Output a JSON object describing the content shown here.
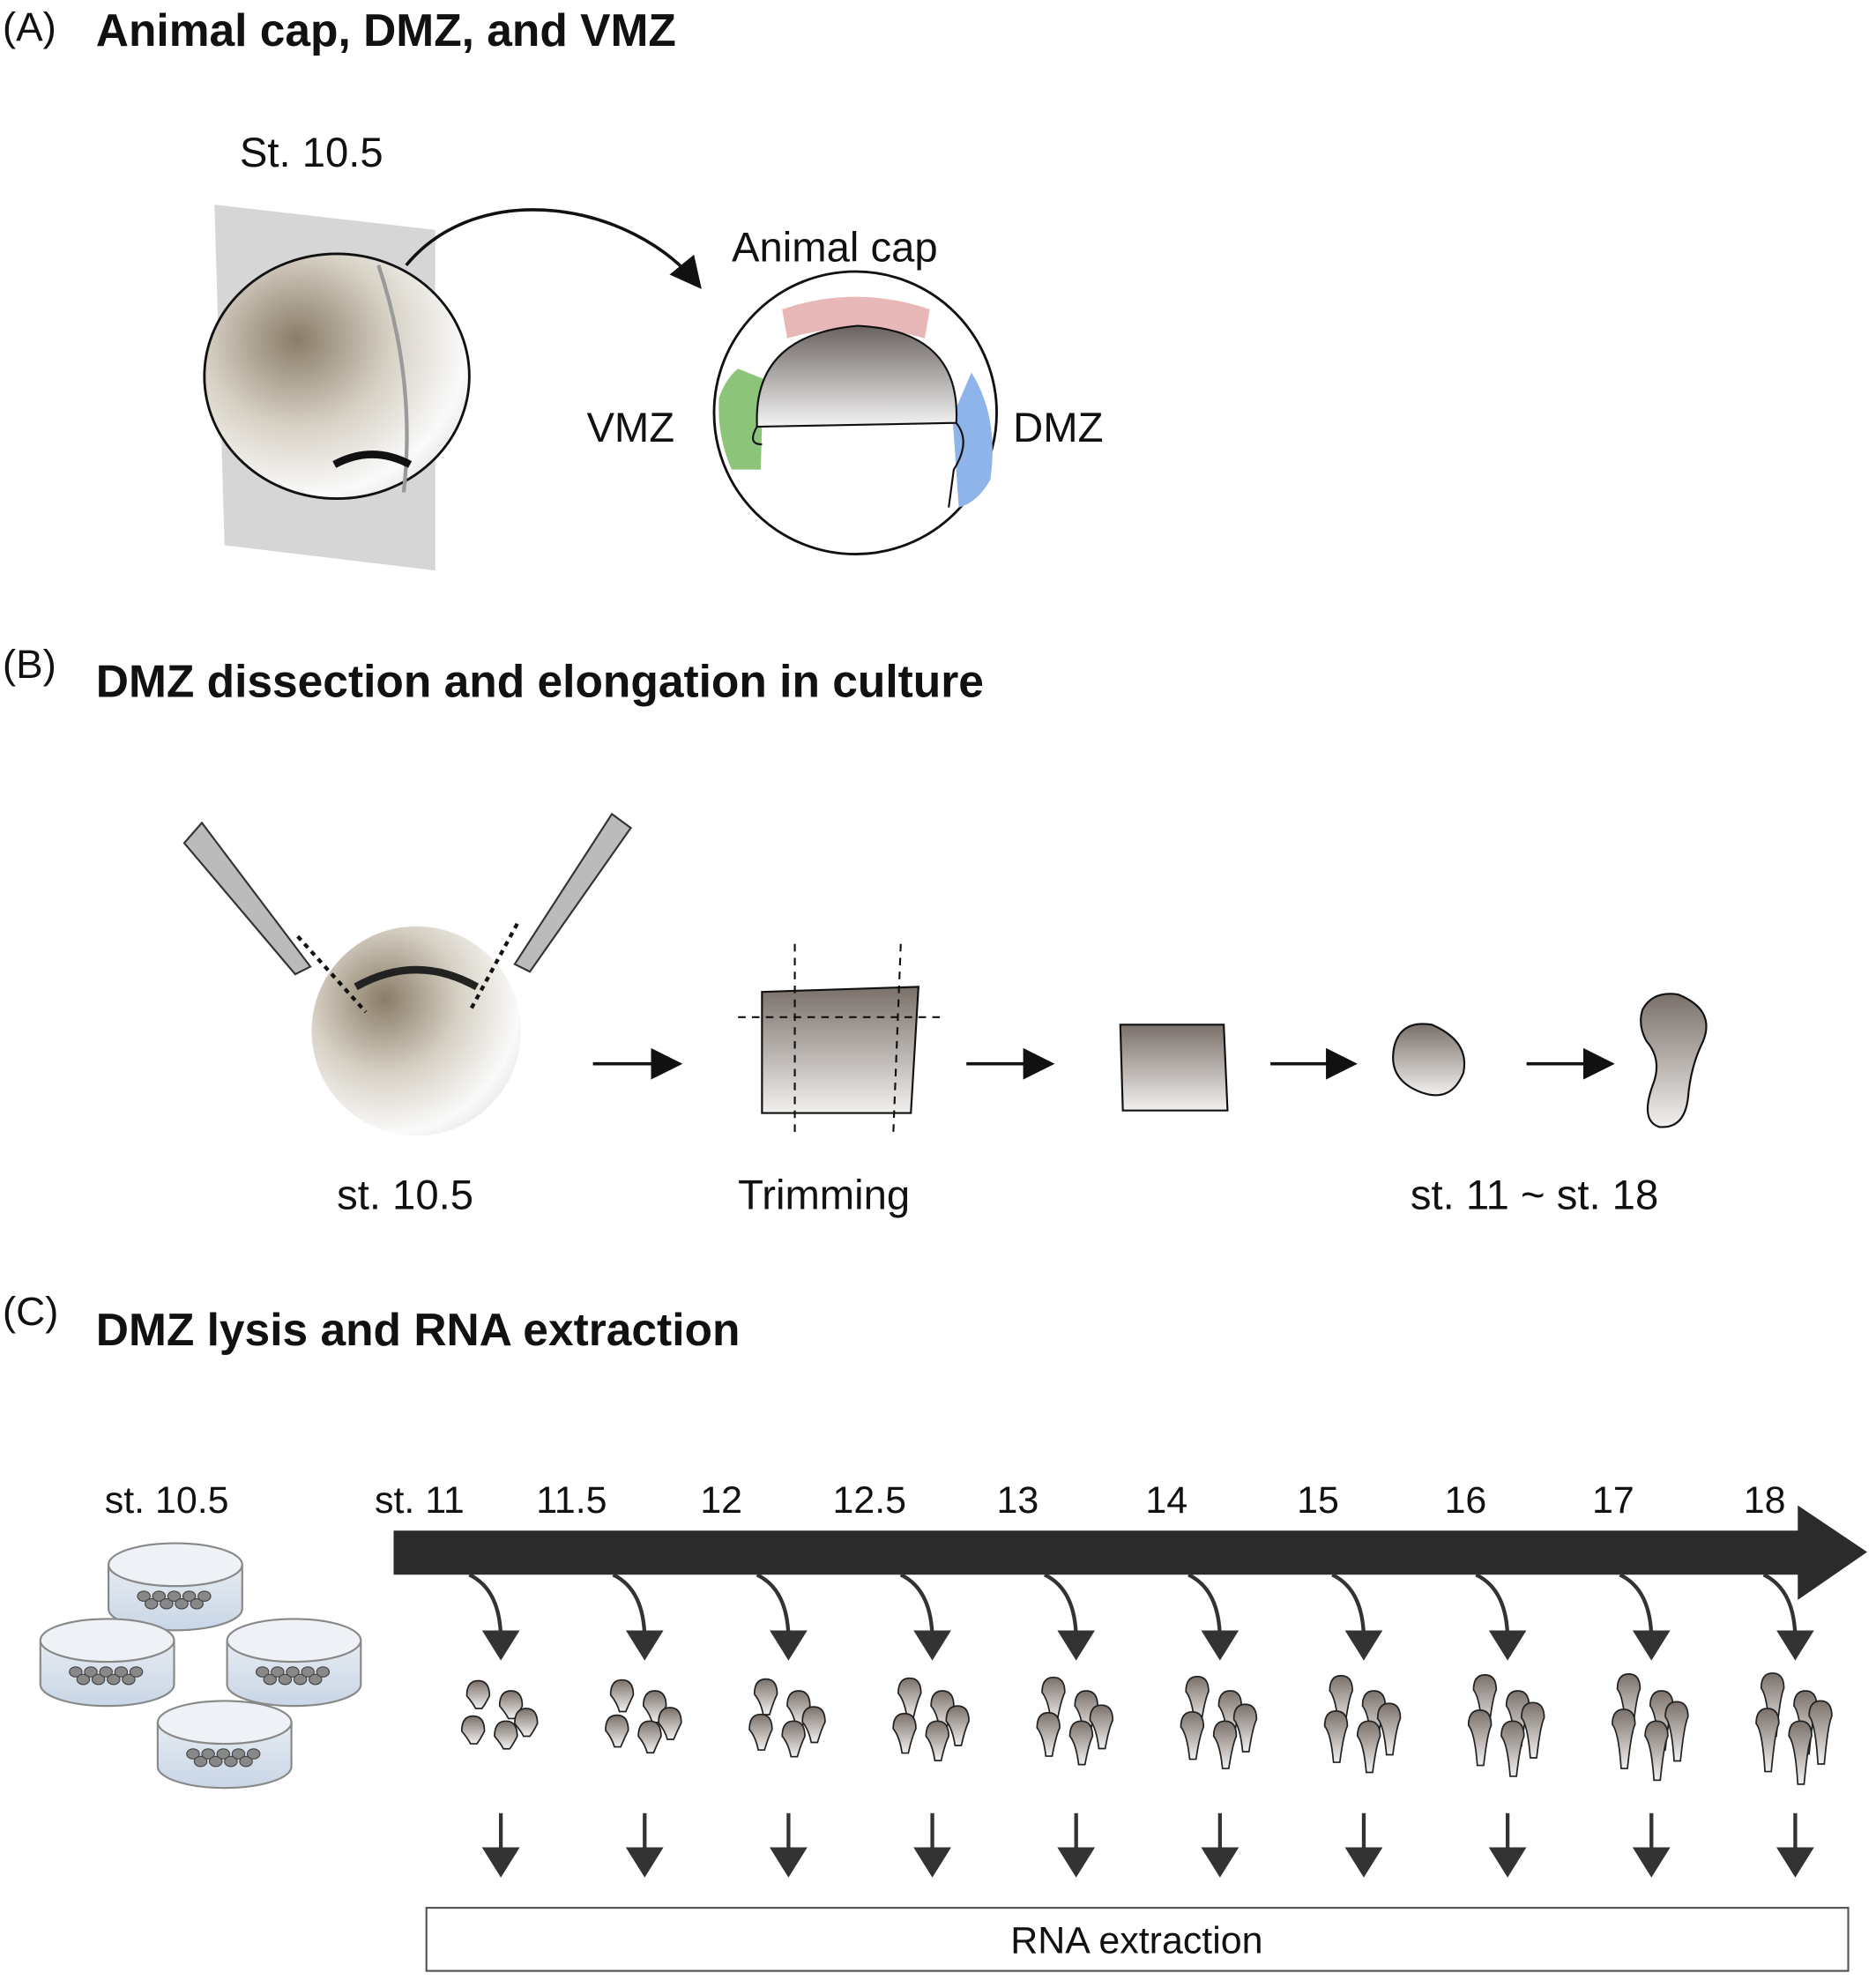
{
  "panel_a": {
    "letter": "(A)",
    "title": "Animal cap, DMZ, and VMZ",
    "stage": "St. 10.5",
    "animal_cap": "Animal cap",
    "vmz": "VMZ",
    "dmz": "DMZ",
    "colors": {
      "animal_cap": "#e8b8b8",
      "vmz": "#8cc47a",
      "dmz": "#8fb4ea"
    }
  },
  "panel_b": {
    "letter": "(B)",
    "title": "DMZ dissection and elongation in culture",
    "stage_start": "st. 10.5",
    "trimming": "Trimming",
    "stage_range": "st. 11 ~ st. 18"
  },
  "panel_c": {
    "letter": "(C)",
    "title": "DMZ lysis and RNA extraction",
    "start_stage": "st. 10.5",
    "stages": [
      "st. 11",
      "11.5",
      "12",
      "12.5",
      "13",
      "14",
      "15",
      "16",
      "17",
      "18"
    ],
    "rna_box": "RNA extraction"
  }
}
